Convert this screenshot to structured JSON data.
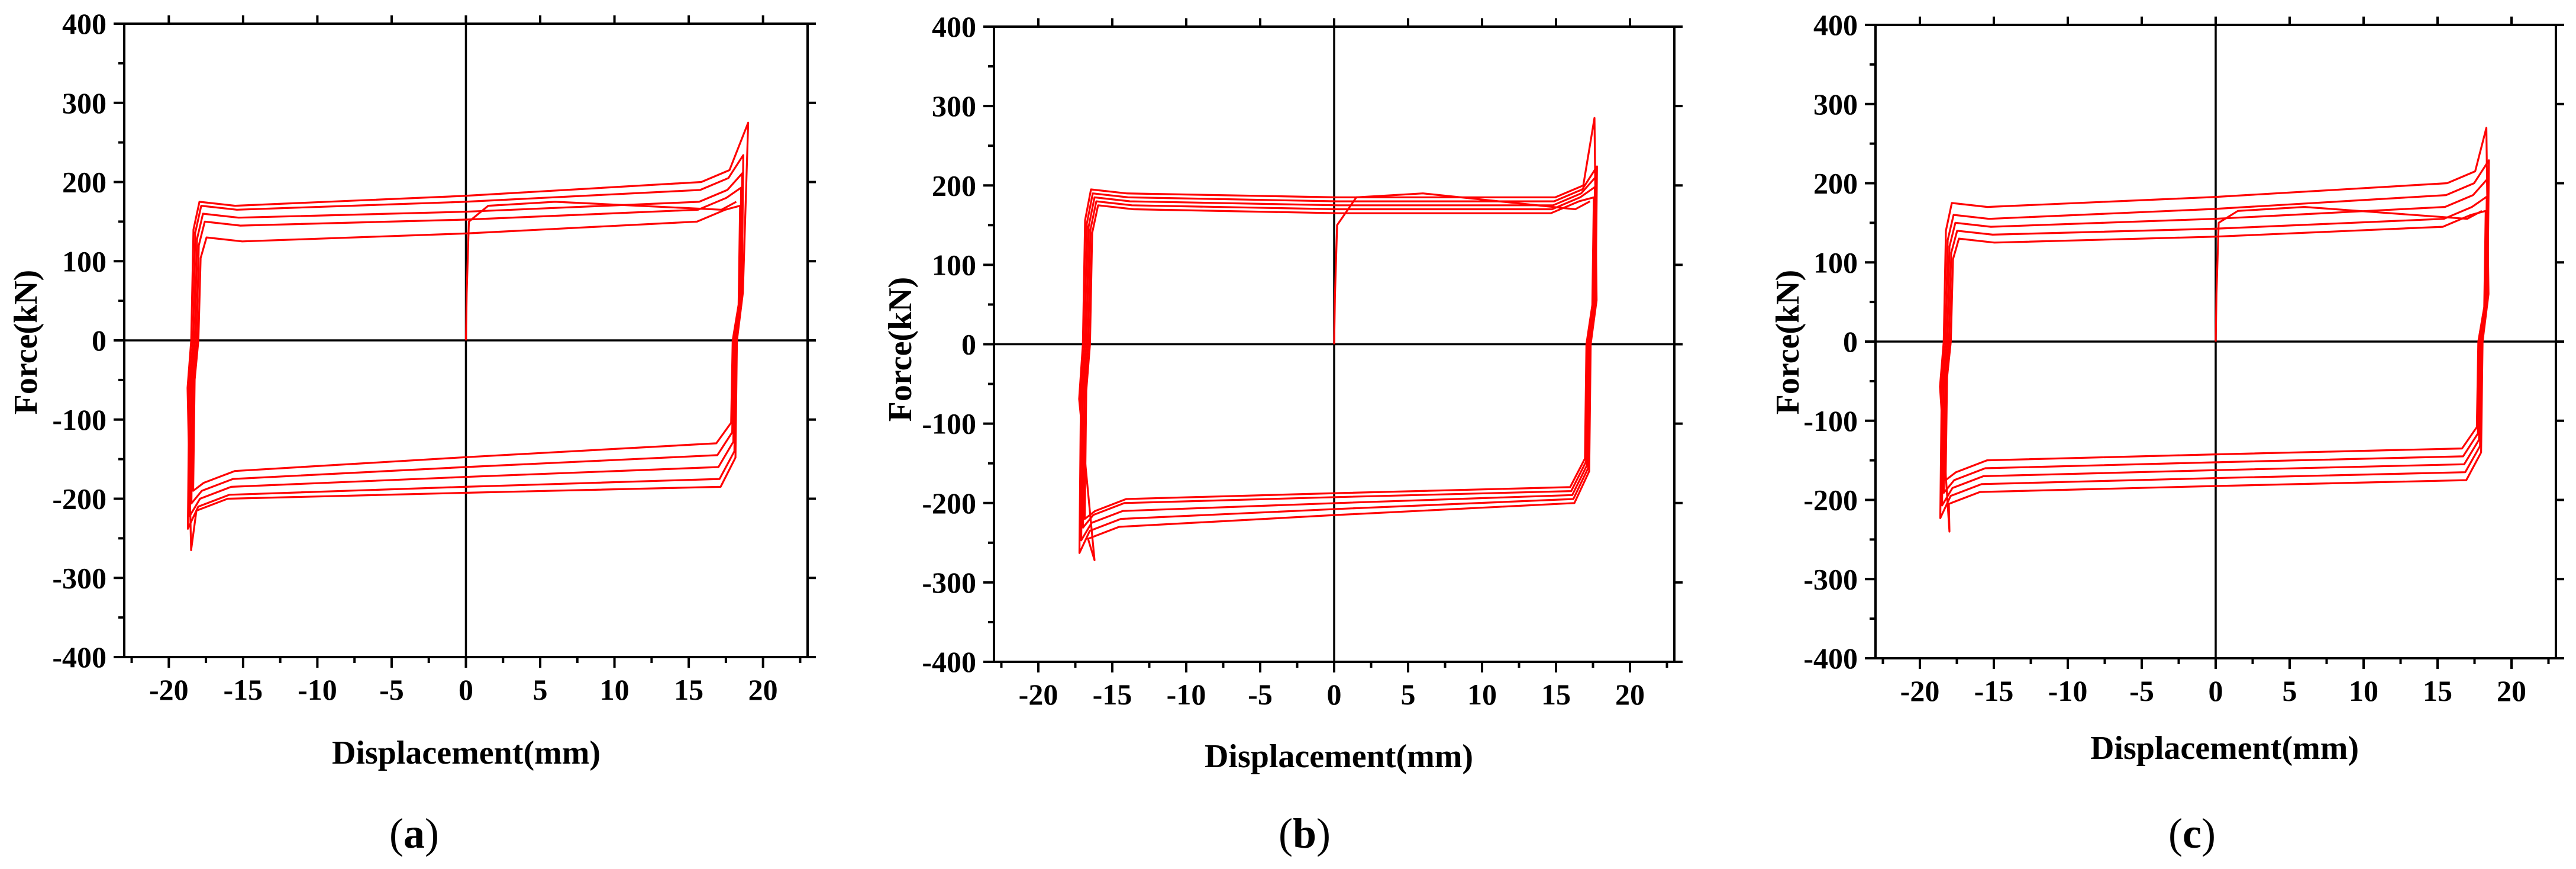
{
  "chart_data": [
    {
      "type": "line",
      "panel_label": "a",
      "xlabel": "Displacement(mm)",
      "ylabel": "Force(kN)",
      "xlim": [
        -23,
        23
      ],
      "ylim": [
        -400,
        400
      ],
      "xticks": [
        -20,
        -15,
        -10,
        -5,
        0,
        5,
        10,
        15,
        20
      ],
      "yticks": [
        -400,
        -300,
        -200,
        -100,
        0,
        100,
        200,
        300,
        400
      ],
      "series_color": "#ff0000",
      "loop_profile": {
        "x_left": -18.3,
        "x_right": 18.2,
        "upper_start": [
          130,
          150,
          160,
          170,
          175
        ],
        "upper_end": [
          150,
          165,
          175,
          190,
          200
        ],
        "lower_start": [
          -165,
          -175,
          -185,
          -195,
          -200
        ],
        "lower_end": [
          -130,
          -145,
          -160,
          -175,
          -185
        ],
        "peak_positive": [
          19.0,
          275
        ],
        "peak_negative": [
          -18.5,
          -265
        ]
      }
    },
    {
      "type": "line",
      "panel_label": "b",
      "xlabel": "Displacement(mm)",
      "ylabel": "Force(kN)",
      "xlim": [
        -23,
        23
      ],
      "ylim": [
        -400,
        400
      ],
      "xticks": [
        -20,
        -15,
        -10,
        -5,
        0,
        5,
        10,
        15,
        20
      ],
      "yticks": [
        -400,
        -300,
        -200,
        -100,
        0,
        100,
        200,
        300,
        400
      ],
      "series_color": "#ff0000",
      "loop_profile": {
        "x_left": -16.8,
        "x_right": 17.3,
        "upper_start": [
          175,
          180,
          185,
          190,
          195
        ],
        "upper_end": [
          165,
          170,
          175,
          180,
          185
        ],
        "lower_start": [
          -195,
          -200,
          -210,
          -220,
          -230
        ],
        "lower_end": [
          -180,
          -185,
          -190,
          -195,
          -200
        ],
        "peak_positive": [
          17.6,
          285
        ],
        "peak_negative": [
          -16.2,
          -272
        ]
      }
    },
    {
      "type": "line",
      "panel_label": "c",
      "xlabel": "Displacement(mm)",
      "ylabel": "Force(kN)",
      "xlim": [
        -23,
        23
      ],
      "ylim": [
        -400,
        400
      ],
      "xticks": [
        -20,
        -15,
        -10,
        -5,
        0,
        5,
        10,
        15,
        20
      ],
      "yticks": [
        -400,
        -300,
        -200,
        -100,
        0,
        100,
        200,
        300,
        400
      ],
      "series_color": "#ff0000",
      "loop_profile": {
        "x_left": -18.2,
        "x_right": 18.0,
        "upper_start": [
          130,
          140,
          150,
          160,
          175
        ],
        "upper_end": [
          145,
          155,
          170,
          185,
          200
        ],
        "lower_start": [
          -150,
          -160,
          -170,
          -180,
          -190
        ],
        "lower_end": [
          -135,
          -145,
          -155,
          -165,
          -175
        ],
        "peak_positive": [
          18.3,
          270
        ],
        "peak_negative": [
          -18.0,
          -240
        ]
      }
    }
  ]
}
